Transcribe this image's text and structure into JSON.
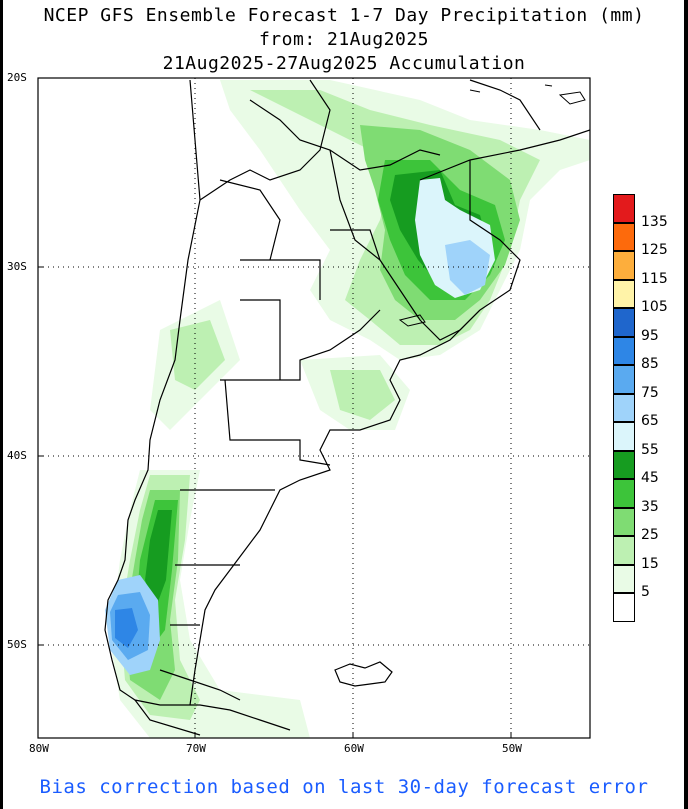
{
  "title": {
    "line1": "NCEP GFS Ensemble Forecast 1-7 Day Precipitation (mm)",
    "line2": "from: 21Aug2025",
    "line3": "21Aug2025-27Aug2025 Accumulation"
  },
  "axes": {
    "lat_labels": [
      "20S",
      "30S",
      "40S",
      "50S"
    ],
    "lon_labels": [
      "80W",
      "70W",
      "60W",
      "50W"
    ]
  },
  "legend": {
    "labels": [
      "135",
      "125",
      "115",
      "105",
      "95",
      "85",
      "75",
      "65",
      "55",
      "45",
      "35",
      "25",
      "15",
      "5"
    ],
    "colors": [
      "#e31a1c",
      "#fd6a0c",
      "#fdae3c",
      "#fff3a8",
      "#1f66cc",
      "#2e86e6",
      "#5aaaf0",
      "#9fd3fa",
      "#dbf5fb",
      "#169c20",
      "#3dc43a",
      "#7fdc73",
      "#bdf0b2",
      "#e9fbe6",
      "#ffffff"
    ]
  },
  "footer": "Bias correction based on last 30-day forecast error"
}
